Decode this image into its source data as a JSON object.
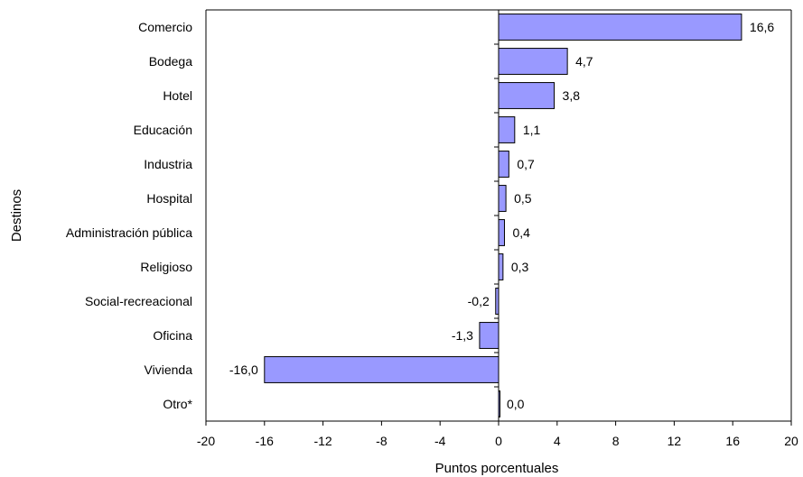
{
  "chart_data": {
    "type": "bar",
    "orientation": "horizontal",
    "categories": [
      "Comercio",
      "Bodega",
      "Hotel",
      "Educación",
      "Industria",
      "Hospital",
      "Administración pública",
      "Religioso",
      "Social-recreacional",
      "Oficina",
      "Vivienda",
      "Otro*"
    ],
    "values": [
      16.6,
      4.7,
      3.8,
      1.1,
      0.7,
      0.5,
      0.4,
      0.3,
      -0.2,
      -1.3,
      -16.0,
      0.0
    ],
    "value_labels": [
      "16,6",
      "4,7",
      "3,8",
      "1,1",
      "0,7",
      "0,5",
      "0,4",
      "0,3",
      "-0,2",
      "-1,3",
      "-16,0",
      "0,0"
    ],
    "xlabel": "Puntos porcentuales",
    "ylabel": "Destinos",
    "xlim": [
      -20,
      20
    ],
    "xticks": [
      -20,
      -16,
      -12,
      -8,
      -4,
      0,
      4,
      8,
      12,
      16,
      20
    ],
    "xtick_labels": [
      "-20",
      "-16",
      "-12",
      "-8",
      "-4",
      "0",
      "4",
      "8",
      "12",
      "16",
      "20"
    ],
    "grid": false,
    "legend": "none",
    "bar_color": "#9999ff",
    "bar_edge_color": "#000000"
  }
}
